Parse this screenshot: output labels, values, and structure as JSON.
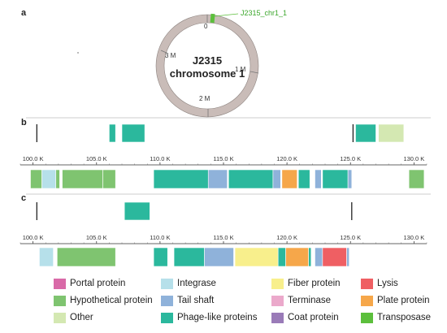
{
  "panels": {
    "a": {
      "label": "a",
      "plasmid": {
        "name_line1": "J2315",
        "name_line2": "chromosome 1",
        "ticks": [
          "0",
          "1 M",
          "2 M",
          "3 M"
        ],
        "marker_label": "J2315_chr1_1",
        "marker_color": "#5cbf3c",
        "ring_color": "#c9bcb8"
      }
    },
    "b": {
      "label": "b",
      "axis": {
        "min": 99,
        "max": 131,
        "ticks": [
          "100.0 K",
          "105.0 K",
          "110.0 K",
          "115.0 K",
          "120.0 K",
          "125.0 K",
          "130.0 K"
        ],
        "tick_values": [
          100,
          105,
          110,
          115,
          120,
          125,
          130
        ]
      },
      "marks": [
        100.3,
        125.2
      ],
      "top_genes": [
        {
          "start": 106.0,
          "end": 106.5,
          "type": "phage"
        },
        {
          "start": 107.0,
          "end": 108.8,
          "type": "phage"
        },
        {
          "start": 125.4,
          "end": 127.0,
          "type": "phage"
        },
        {
          "start": 127.2,
          "end": 129.2,
          "type": "other"
        }
      ],
      "bottom_genes": [
        {
          "start": 99.8,
          "end": 100.7,
          "type": "hypothetical"
        },
        {
          "start": 100.7,
          "end": 101.8,
          "type": "integrase"
        },
        {
          "start": 101.8,
          "end": 102.1,
          "type": "hypothetical"
        },
        {
          "start": 102.3,
          "end": 105.5,
          "type": "hypothetical"
        },
        {
          "start": 105.5,
          "end": 106.5,
          "type": "hypothetical"
        },
        {
          "start": 109.5,
          "end": 113.8,
          "type": "phage"
        },
        {
          "start": 113.8,
          "end": 115.3,
          "type": "tail"
        },
        {
          "start": 115.4,
          "end": 118.9,
          "type": "phage"
        },
        {
          "start": 118.9,
          "end": 119.5,
          "type": "tail"
        },
        {
          "start": 119.6,
          "end": 120.8,
          "type": "plate"
        },
        {
          "start": 120.9,
          "end": 121.8,
          "type": "phage"
        },
        {
          "start": 122.2,
          "end": 122.7,
          "type": "tail"
        },
        {
          "start": 122.8,
          "end": 124.8,
          "type": "phage"
        },
        {
          "start": 124.8,
          "end": 125.1,
          "type": "tail"
        },
        {
          "start": 129.6,
          "end": 130.8,
          "type": "hypothetical"
        }
      ]
    },
    "c": {
      "label": "c",
      "axis": {
        "min": 99,
        "max": 131,
        "ticks": [
          "100.0 K",
          "105.0 K",
          "110.0 K",
          "115.0 K",
          "120.0 K",
          "125.0 K",
          "130.0 K"
        ],
        "tick_values": [
          100,
          105,
          110,
          115,
          120,
          125,
          130
        ]
      },
      "marks": [
        100.3,
        125.1
      ],
      "top_genes": [
        {
          "start": 107.2,
          "end": 109.2,
          "type": "phage"
        }
      ],
      "bottom_genes": [
        {
          "start": 100.5,
          "end": 101.6,
          "type": "integrase"
        },
        {
          "start": 101.9,
          "end": 106.5,
          "type": "hypothetical"
        },
        {
          "start": 109.5,
          "end": 110.6,
          "type": "phage"
        },
        {
          "start": 111.1,
          "end": 113.5,
          "type": "phage"
        },
        {
          "start": 113.5,
          "end": 115.8,
          "type": "tail"
        },
        {
          "start": 115.9,
          "end": 119.3,
          "type": "fiber"
        },
        {
          "start": 119.3,
          "end": 119.9,
          "type": "phage"
        },
        {
          "start": 119.9,
          "end": 121.7,
          "type": "plate"
        },
        {
          "start": 121.7,
          "end": 121.9,
          "type": "phage"
        },
        {
          "start": 122.2,
          "end": 122.8,
          "type": "tail"
        },
        {
          "start": 122.8,
          "end": 124.7,
          "type": "lysis"
        },
        {
          "start": 124.7,
          "end": 124.9,
          "type": "tail"
        }
      ]
    }
  },
  "legend": [
    {
      "key": "portal",
      "label": "Portal protein",
      "color": "#d96aa8"
    },
    {
      "key": "hypothetical",
      "label": "Hypothetical protein",
      "color": "#7fc470"
    },
    {
      "key": "other",
      "label": "Other",
      "color": "#d4e8b2"
    },
    {
      "key": "integrase",
      "label": "Integrase",
      "color": "#b6e0ea"
    },
    {
      "key": "tail",
      "label": "Tail shaft",
      "color": "#8fb2da"
    },
    {
      "key": "phage",
      "label": "Phage-like proteins",
      "color": "#2bb89d"
    },
    {
      "key": "fiber",
      "label": "Fiber protein",
      "color": "#f8ef8c"
    },
    {
      "key": "terminase",
      "label": "Terminase",
      "color": "#eba9cb"
    },
    {
      "key": "coat",
      "label": "Coat protein",
      "color": "#9a7bb8"
    },
    {
      "key": "lysis",
      "label": "Lysis",
      "color": "#ef5f63"
    },
    {
      "key": "plate",
      "label": "Plate protein",
      "color": "#f6a74a"
    },
    {
      "key": "transposase",
      "label": "Transposase",
      "color": "#5cbf3c"
    }
  ]
}
